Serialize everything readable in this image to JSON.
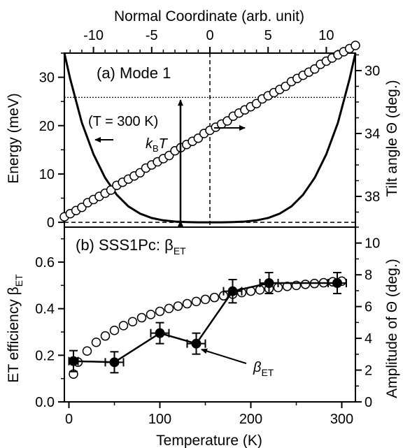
{
  "chart_data": [
    {
      "panel": "a",
      "type": "line",
      "panel_label": "(a) Mode 1",
      "top_axis": {
        "label": "Normal Coordinate (arb. unit)",
        "range": [
          -12.5,
          12.5
        ],
        "ticks": [
          -10,
          -5,
          0,
          5,
          10
        ],
        "tick_labels": [
          "-10",
          "-5",
          "0",
          "5",
          "10"
        ]
      },
      "left_axis": {
        "label": "Energy (meV)",
        "range": [
          -1,
          35
        ],
        "ticks": [
          0,
          10,
          20,
          30
        ],
        "tick_labels": [
          "0",
          "10",
          "20",
          "30"
        ]
      },
      "right_axis": {
        "label": "Tilt angle Θ (deg.)",
        "inverted": true,
        "ticks": [
          30,
          34,
          38
        ],
        "tick_labels": [
          "30",
          "34",
          "38"
        ]
      },
      "series": [
        {
          "style": "solid-line",
          "axis": "left",
          "x": [
            -12.5,
            -12,
            -11,
            -10,
            -9,
            -8,
            -7,
            -6,
            -5,
            -4,
            -3,
            -2,
            -1,
            0,
            1,
            2,
            3,
            4,
            5,
            6,
            7,
            8,
            9,
            10,
            11,
            12,
            12.5
          ],
          "y": [
            35,
            29.7,
            20.6,
            14.1,
            9.2,
            5.7,
            3.3,
            1.8,
            0.9,
            0.4,
            0.15,
            0.05,
            0.0,
            0.0,
            0.0,
            0.05,
            0.15,
            0.4,
            0.9,
            1.8,
            3.3,
            5.7,
            9.2,
            14.1,
            20.6,
            29.7,
            35
          ]
        },
        {
          "style": "open-circles",
          "axis": "right",
          "x": [
            -12.5,
            -12,
            -11.5,
            -11,
            -10.5,
            -10,
            -9.5,
            -9,
            -8.5,
            -8,
            -7.5,
            -7,
            -6.5,
            -6,
            -5.5,
            -5,
            -4.5,
            -4,
            -3.5,
            -3,
            -2.5,
            -2,
            -1.5,
            -1,
            -0.5,
            0,
            0.5,
            1,
            1.5,
            2,
            2.5,
            3,
            3.5,
            4,
            4.5,
            5,
            5.5,
            6,
            6.5,
            7,
            7.5,
            8,
            8.5,
            9,
            9.5,
            10,
            10.5,
            11,
            11.5,
            12,
            12.5
          ],
          "y": [
            39.3,
            39.1,
            38.9,
            38.7,
            38.4,
            38.2,
            38.0,
            37.8,
            37.6,
            37.3,
            37.1,
            36.9,
            36.7,
            36.5,
            36.2,
            36.0,
            35.8,
            35.6,
            35.4,
            35.1,
            34.9,
            34.7,
            34.5,
            34.3,
            34.0,
            33.8,
            33.6,
            33.4,
            33.2,
            32.9,
            32.7,
            32.5,
            32.3,
            32.1,
            31.8,
            31.6,
            31.4,
            31.2,
            31.0,
            30.7,
            30.5,
            30.3,
            30.1,
            29.9,
            29.6,
            29.4,
            29.2,
            29.0,
            28.8,
            28.6,
            28.4
          ]
        }
      ],
      "annotations": {
        "temperature": "(T = 300 K)",
        "kBT_main": "k",
        "kBT_sub": "B",
        "kBT_tail": "T",
        "kBT_value_meV": 25.85
      }
    },
    {
      "panel": "b",
      "type": "scatter",
      "panel_label_main": "(b) SSS1Pc: β",
      "panel_label_sub": "ET",
      "bottom_axis": {
        "label": "Temperature (K)",
        "range": [
          -5,
          315
        ],
        "ticks": [
          0,
          100,
          200,
          300
        ],
        "tick_labels": [
          "0",
          "100",
          "200",
          "300"
        ]
      },
      "left_axis": {
        "label_main": "ET efficiency β",
        "label_sub": "ET",
        "range": [
          0,
          0.75
        ],
        "ticks": [
          0.0,
          0.2,
          0.4,
          0.6
        ],
        "tick_labels": [
          "0.0",
          "0.2",
          "0.4",
          "0.6"
        ]
      },
      "right_axis": {
        "label": "Amplitude of Θ (deg.)",
        "range": [
          0,
          11
        ],
        "ticks": [
          0,
          2,
          4,
          6,
          8,
          10
        ],
        "tick_labels": [
          "0",
          "2",
          "4",
          "6",
          "8",
          "10"
        ]
      },
      "series": [
        {
          "style": "filled-circles-with-errorbars",
          "axis": "left",
          "x": [
            5,
            50,
            100,
            140,
            180,
            220,
            295
          ],
          "y": [
            0.175,
            0.17,
            0.295,
            0.25,
            0.475,
            0.51,
            0.51
          ],
          "y_err": [
            0.045,
            0.045,
            0.045,
            0.045,
            0.05,
            0.045,
            0.045
          ],
          "x_err": [
            5,
            10,
            10,
            10,
            10,
            10,
            10
          ]
        },
        {
          "style": "open-circles",
          "axis": "right",
          "x": [
            5,
            10,
            20,
            30,
            40,
            50,
            60,
            70,
            80,
            90,
            100,
            110,
            120,
            130,
            140,
            150,
            160,
            170,
            180,
            190,
            200,
            210,
            220,
            230,
            240,
            250,
            260,
            270,
            280,
            290,
            300
          ],
          "y": [
            1.75,
            2.5,
            3.2,
            3.75,
            4.15,
            4.5,
            4.8,
            5.05,
            5.3,
            5.5,
            5.7,
            5.88,
            6.03,
            6.18,
            6.32,
            6.45,
            6.57,
            6.68,
            6.78,
            6.88,
            6.97,
            7.05,
            7.13,
            7.2,
            7.27,
            7.33,
            7.4,
            7.45,
            7.5,
            7.56,
            7.6
          ]
        }
      ],
      "annotation_main": "β",
      "annotation_sub": "ET"
    }
  ]
}
